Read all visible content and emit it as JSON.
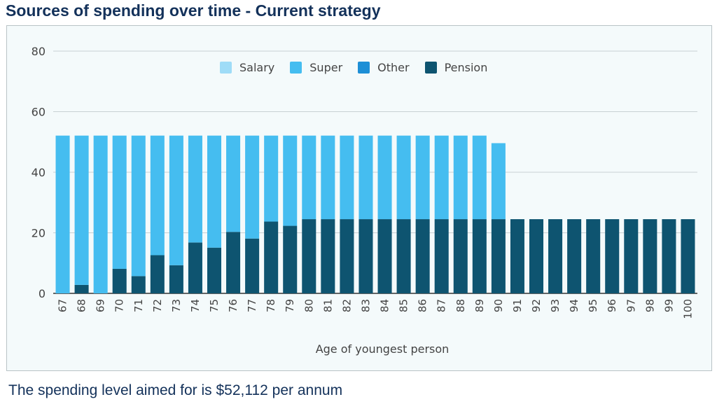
{
  "page": {
    "title": "Sources of spending over time - Current strategy",
    "footer": "The spending level aimed for is $52,112 per annum"
  },
  "chart_data": {
    "type": "bar",
    "stacked": true,
    "title": "",
    "xlabel": "Age of youngest person",
    "ylabel": "",
    "ylim": [
      0,
      80
    ],
    "yticks": [
      0,
      20,
      40,
      60,
      80
    ],
    "grid": true,
    "legend_position": "top-center",
    "categories": [
      "67",
      "68",
      "69",
      "70",
      "71",
      "72",
      "73",
      "74",
      "75",
      "76",
      "77",
      "78",
      "79",
      "80",
      "81",
      "82",
      "83",
      "84",
      "85",
      "86",
      "87",
      "88",
      "89",
      "90",
      "91",
      "92",
      "93",
      "94",
      "95",
      "96",
      "97",
      "98",
      "99",
      "100"
    ],
    "series": [
      {
        "name": "Salary",
        "color": "#9fdcf7",
        "values": [
          0,
          0,
          0,
          0,
          0,
          0,
          0,
          0,
          0,
          0,
          0,
          0,
          0,
          0,
          0,
          0,
          0,
          0,
          0,
          0,
          0,
          0,
          0,
          0,
          0,
          0,
          0,
          0,
          0,
          0,
          0,
          0,
          0,
          0
        ]
      },
      {
        "name": "Super",
        "color": "#45bdf0",
        "values": [
          52.1,
          49.3,
          52.1,
          44,
          46.4,
          39.5,
          42.8,
          35.3,
          37,
          31.8,
          34,
          28.4,
          29.8,
          27.6,
          27.6,
          27.6,
          27.6,
          27.6,
          27.6,
          27.6,
          27.6,
          27.6,
          27.6,
          25.1,
          0,
          0,
          0,
          0,
          0,
          0,
          0,
          0,
          0,
          0
        ]
      },
      {
        "name": "Other",
        "color": "#1e8fd6",
        "values": [
          0,
          0,
          0,
          0,
          0,
          0,
          0,
          0,
          0,
          0,
          0,
          0,
          0,
          0,
          0,
          0,
          0,
          0,
          0,
          0,
          0,
          0,
          0,
          0,
          0,
          0,
          0,
          0,
          0,
          0,
          0,
          0,
          0,
          0
        ]
      },
      {
        "name": "Pension",
        "color": "#0e5470",
        "values": [
          0,
          2.8,
          0,
          8.1,
          5.7,
          12.6,
          9.3,
          16.8,
          15.1,
          20.3,
          18.1,
          23.7,
          22.3,
          24.5,
          24.5,
          24.5,
          24.5,
          24.5,
          24.5,
          24.5,
          24.5,
          24.5,
          24.5,
          24.5,
          24.5,
          24.5,
          24.5,
          24.5,
          24.5,
          24.5,
          24.5,
          24.5,
          24.5,
          24.5
        ]
      }
    ]
  }
}
